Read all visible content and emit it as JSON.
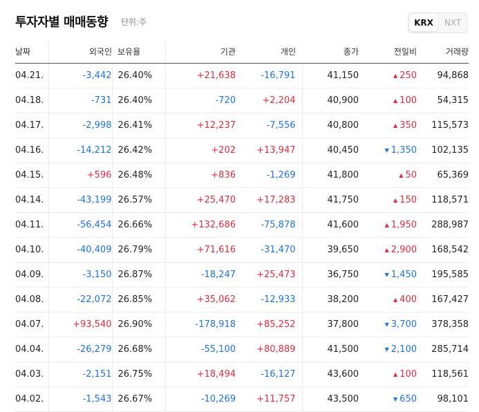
{
  "header": {
    "title": "투자자별 매매동향",
    "unit": "단위:주",
    "markets": [
      {
        "label": "KRX",
        "active": true
      },
      {
        "label": "NXT",
        "active": false
      }
    ]
  },
  "columns": {
    "date": "날짜",
    "foreign": "외국인",
    "ratio": "보유율",
    "institution": "기관",
    "individual": "개인",
    "close": "종가",
    "change": "전일비",
    "volume": "거래량"
  },
  "rows": [
    {
      "date": "04.21.",
      "foreign": "-3,442",
      "ratio": "26.40%",
      "institution": "+21,638",
      "individual": "-16,791",
      "close": "41,150",
      "change": "250",
      "change_dir": "up",
      "volume": "94,868"
    },
    {
      "date": "04.18.",
      "foreign": "-731",
      "ratio": "26.40%",
      "institution": "-720",
      "individual": "+2,204",
      "close": "40,900",
      "change": "100",
      "change_dir": "up",
      "volume": "54,315"
    },
    {
      "date": "04.17.",
      "foreign": "-2,998",
      "ratio": "26.41%",
      "institution": "+12,237",
      "individual": "-7,556",
      "close": "40,800",
      "change": "350",
      "change_dir": "up",
      "volume": "115,573"
    },
    {
      "date": "04.16.",
      "foreign": "-14,212",
      "ratio": "26.42%",
      "institution": "+202",
      "individual": "+13,947",
      "close": "40,450",
      "change": "1,350",
      "change_dir": "down",
      "volume": "102,135"
    },
    {
      "date": "04.15.",
      "foreign": "+596",
      "ratio": "26.48%",
      "institution": "+836",
      "individual": "-1,269",
      "close": "41,800",
      "change": "50",
      "change_dir": "up",
      "volume": "65,369"
    },
    {
      "date": "04.14.",
      "foreign": "-43,199",
      "ratio": "26.57%",
      "institution": "+25,470",
      "individual": "+17,283",
      "close": "41,750",
      "change": "150",
      "change_dir": "up",
      "volume": "118,571"
    },
    {
      "date": "04.11.",
      "foreign": "-56,454",
      "ratio": "26.66%",
      "institution": "+132,686",
      "individual": "-75,878",
      "close": "41,600",
      "change": "1,950",
      "change_dir": "up",
      "volume": "288,987"
    },
    {
      "date": "04.10.",
      "foreign": "-40,409",
      "ratio": "26.79%",
      "institution": "+71,616",
      "individual": "-31,470",
      "close": "39,650",
      "change": "2,900",
      "change_dir": "up",
      "volume": "168,542"
    },
    {
      "date": "04.09.",
      "foreign": "-3,150",
      "ratio": "26.87%",
      "institution": "-18,247",
      "individual": "+25,473",
      "close": "36,750",
      "change": "1,450",
      "change_dir": "down",
      "volume": "195,585"
    },
    {
      "date": "04.08.",
      "foreign": "-22,072",
      "ratio": "26.85%",
      "institution": "+35,062",
      "individual": "-12,933",
      "close": "38,200",
      "change": "400",
      "change_dir": "up",
      "volume": "167,427"
    },
    {
      "date": "04.07.",
      "foreign": "+93,540",
      "ratio": "26.90%",
      "institution": "-178,918",
      "individual": "+85,252",
      "close": "37,800",
      "change": "3,700",
      "change_dir": "down",
      "volume": "378,358"
    },
    {
      "date": "04.04.",
      "foreign": "-26,279",
      "ratio": "26.68%",
      "institution": "-55,100",
      "individual": "+80,889",
      "close": "41,500",
      "change": "2,100",
      "change_dir": "down",
      "volume": "285,714"
    },
    {
      "date": "04.03.",
      "foreign": "-2,151",
      "ratio": "26.75%",
      "institution": "+18,494",
      "individual": "-16,127",
      "close": "43,600",
      "change": "100",
      "change_dir": "up",
      "volume": "118,561"
    },
    {
      "date": "04.02.",
      "foreign": "-1,543",
      "ratio": "26.67%",
      "institution": "-10,269",
      "individual": "+11,757",
      "close": "43,500",
      "change": "650",
      "change_dir": "down",
      "volume": "98,101"
    }
  ],
  "colors": {
    "up": "#e6293e",
    "down": "#1a73e8"
  },
  "icons": {
    "up": "triangle-up-icon",
    "down": "triangle-down-icon"
  }
}
